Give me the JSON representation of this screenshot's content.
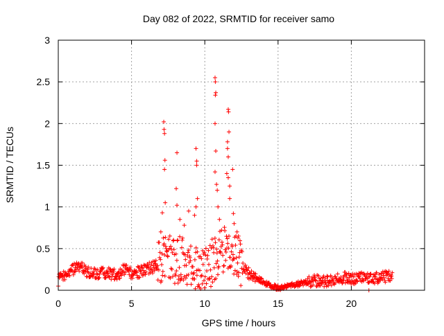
{
  "chart_data": {
    "type": "scatter",
    "title": "Day 082 of 2022, SRMTID for receiver samo",
    "xlabel": "GPS time / hours",
    "ylabel": "SRMTID / TECUs",
    "xlim": [
      0,
      25
    ],
    "ylim": [
      0,
      3
    ],
    "xticks": [
      0,
      5,
      10,
      15,
      20
    ],
    "yticks": [
      0,
      0.5,
      1,
      1.5,
      2,
      2.5,
      3
    ],
    "xtick_labels": [
      "0",
      "5",
      "10",
      "15",
      "20"
    ],
    "ytick_labels": [
      "0",
      "0.5",
      "1",
      "1.5",
      "2",
      "2.5",
      "3"
    ],
    "grid": true,
    "marker": "+",
    "color": "#ff0000",
    "series": [
      {
        "name": "SRMTID",
        "baseline": [
          [
            0.0,
            0.12
          ],
          [
            0.5,
            0.2
          ],
          [
            1.0,
            0.25
          ],
          [
            1.5,
            0.28
          ],
          [
            2.0,
            0.22
          ],
          [
            2.5,
            0.2
          ],
          [
            3.0,
            0.22
          ],
          [
            3.5,
            0.2
          ],
          [
            4.0,
            0.18
          ],
          [
            4.5,
            0.25
          ],
          [
            5.0,
            0.2
          ],
          [
            5.5,
            0.22
          ],
          [
            6.0,
            0.25
          ],
          [
            6.5,
            0.28
          ],
          [
            7.0,
            0.35
          ],
          [
            7.5,
            0.4
          ],
          [
            8.0,
            0.35
          ],
          [
            8.5,
            0.38
          ],
          [
            9.0,
            0.3
          ],
          [
            9.5,
            0.28
          ],
          [
            10.0,
            0.2
          ],
          [
            10.5,
            0.35
          ],
          [
            11.0,
            0.45
          ],
          [
            11.5,
            0.5
          ],
          [
            12.0,
            0.45
          ],
          [
            12.5,
            0.3
          ],
          [
            13.0,
            0.2
          ],
          [
            13.5,
            0.15
          ],
          [
            14.0,
            0.1
          ],
          [
            14.5,
            0.05
          ],
          [
            15.0,
            0.03
          ],
          [
            15.5,
            0.04
          ],
          [
            16.0,
            0.06
          ],
          [
            16.5,
            0.08
          ],
          [
            17.0,
            0.1
          ],
          [
            17.5,
            0.12
          ],
          [
            18.0,
            0.1
          ],
          [
            18.5,
            0.12
          ],
          [
            19.0,
            0.14
          ],
          [
            19.5,
            0.15
          ],
          [
            20.0,
            0.13
          ],
          [
            20.5,
            0.14
          ],
          [
            21.0,
            0.15
          ],
          [
            21.5,
            0.15
          ],
          [
            22.0,
            0.16
          ],
          [
            22.5,
            0.17
          ],
          [
            22.8,
            0.18
          ]
        ],
        "spikes": [
          [
            7.2,
            2.02
          ],
          [
            7.22,
            1.93
          ],
          [
            7.25,
            1.88
          ],
          [
            7.28,
            1.56
          ],
          [
            7.25,
            1.45
          ],
          [
            7.3,
            1.05
          ],
          [
            7.1,
            0.93
          ],
          [
            7.0,
            0.7
          ],
          [
            8.1,
            1.65
          ],
          [
            8.05,
            1.22
          ],
          [
            8.1,
            1.02
          ],
          [
            8.3,
            0.85
          ],
          [
            8.6,
            0.78
          ],
          [
            8.9,
            0.95
          ],
          [
            9.4,
            1.7
          ],
          [
            9.45,
            1.55
          ],
          [
            9.45,
            1.5
          ],
          [
            9.5,
            1.1
          ],
          [
            9.4,
            1.0
          ],
          [
            9.3,
            0.9
          ],
          [
            10.7,
            2.55
          ],
          [
            10.72,
            2.5
          ],
          [
            10.75,
            2.37
          ],
          [
            10.72,
            2.34
          ],
          [
            10.7,
            2.0
          ],
          [
            10.75,
            1.67
          ],
          [
            10.7,
            1.42
          ],
          [
            10.8,
            1.27
          ],
          [
            10.85,
            1.2
          ],
          [
            10.9,
            1.0
          ],
          [
            11.0,
            0.85
          ],
          [
            11.6,
            2.17
          ],
          [
            11.62,
            2.14
          ],
          [
            11.65,
            1.9
          ],
          [
            11.55,
            1.78
          ],
          [
            11.55,
            1.7
          ],
          [
            11.6,
            1.6
          ],
          [
            11.5,
            1.4
          ],
          [
            11.6,
            1.35
          ],
          [
            11.7,
            1.25
          ],
          [
            11.7,
            1.1
          ],
          [
            11.9,
            1.45
          ],
          [
            11.95,
            0.92
          ],
          [
            12.0,
            0.8
          ],
          [
            12.2,
            0.7
          ],
          [
            12.3,
            0.65
          ],
          [
            21.2,
            0.0
          ]
        ]
      }
    ]
  }
}
